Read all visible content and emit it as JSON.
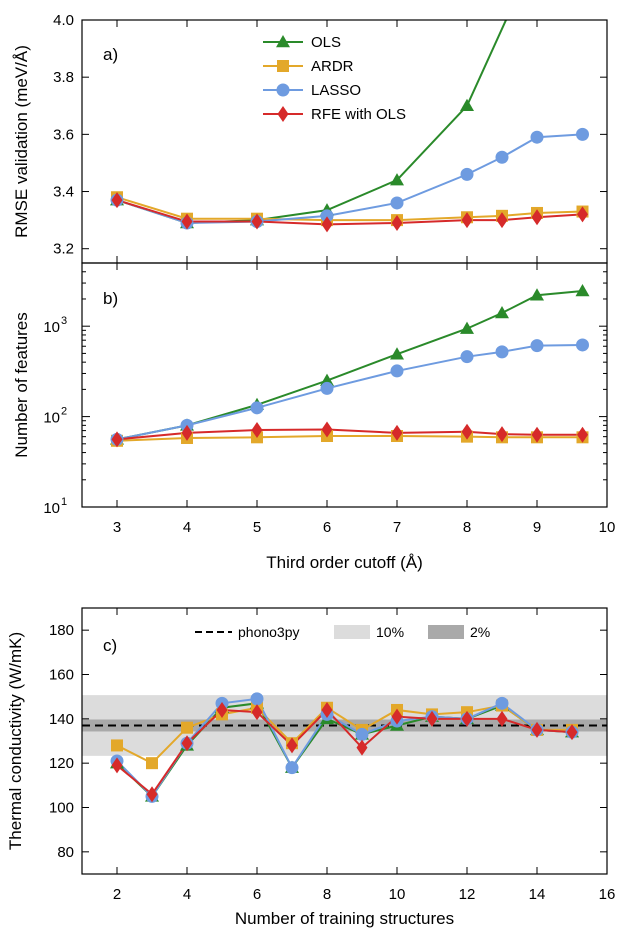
{
  "colors": {
    "OLS": "#2a8a2a",
    "ARDR": "#e3a82a",
    "LASSO": "#6e9be0",
    "RFE with OLS": "#d62a2a",
    "band10": "#dcdcdc",
    "band2": "#a9a9a9",
    "phono3py": "#000000"
  },
  "chart_data": [
    {
      "type": "line",
      "panel": "a)",
      "ylabel": "RMSE validation (meV/Å)",
      "ylim": [
        3.15,
        4.0
      ],
      "yticks": [
        3.2,
        3.4,
        3.6,
        3.8,
        4.0
      ],
      "ytick_labels": [
        "3.2",
        "3.4",
        "3.6",
        "3.8",
        "4.0"
      ],
      "xlim": [
        2.5,
        10
      ],
      "x": [
        3,
        4,
        5,
        6,
        7,
        8,
        8.5,
        9,
        9.65
      ],
      "legend": {
        "placement": "top-center",
        "entries": [
          "OLS",
          "ARDR",
          "LASSO",
          "RFE with OLS"
        ]
      },
      "series": [
        {
          "name": "OLS",
          "marker": "triangle",
          "x": [
            3,
            4,
            5,
            6,
            7,
            8,
            8.65
          ],
          "values": [
            3.37,
            3.29,
            3.3,
            3.335,
            3.44,
            3.7,
            4.05
          ]
        },
        {
          "name": "ARDR",
          "marker": "square",
          "values": [
            3.38,
            3.305,
            3.305,
            3.3,
            3.3,
            3.31,
            3.315,
            3.325,
            3.33
          ]
        },
        {
          "name": "LASSO",
          "marker": "circle",
          "values": [
            3.37,
            3.29,
            3.295,
            3.315,
            3.36,
            3.46,
            3.52,
            3.59,
            3.6
          ]
        },
        {
          "name": "RFE with OLS",
          "marker": "diamond",
          "values": [
            3.37,
            3.295,
            3.295,
            3.285,
            3.29,
            3.3,
            3.3,
            3.31,
            3.32
          ]
        }
      ]
    },
    {
      "type": "line",
      "panel": "b)",
      "yscale": "log",
      "ylabel": "Number of features",
      "xlabel": "Third order cutoff (Å)",
      "ylim": [
        10,
        5000
      ],
      "yticks": [
        10,
        100,
        1000
      ],
      "ytick_labels": [
        "10",
        "10",
        "10"
      ],
      "ytick_exponents": [
        "1",
        "2",
        "3"
      ],
      "xlim": [
        2.5,
        10
      ],
      "xticks": [
        3,
        4,
        5,
        6,
        7,
        8,
        9,
        10
      ],
      "xtick_labels": [
        "3",
        "4",
        "5",
        "6",
        "7",
        "8",
        "9",
        "10"
      ],
      "x": [
        3,
        4,
        5,
        6,
        7,
        8,
        8.5,
        9,
        9.65
      ],
      "series": [
        {
          "name": "OLS",
          "marker": "triangle",
          "values": [
            56,
            80,
            135,
            250,
            490,
            940,
            1400,
            2200,
            2450
          ]
        },
        {
          "name": "ARDR",
          "marker": "square",
          "values": [
            54,
            58,
            59,
            61,
            61,
            60,
            59,
            59,
            59
          ]
        },
        {
          "name": "LASSO",
          "marker": "circle",
          "values": [
            56,
            80,
            125,
            205,
            320,
            460,
            520,
            610,
            620
          ]
        },
        {
          "name": "RFE with OLS",
          "marker": "diamond",
          "values": [
            56,
            66,
            71,
            72,
            66,
            68,
            64,
            63,
            63
          ]
        }
      ]
    },
    {
      "type": "line",
      "panel": "c)",
      "ylabel": "Thermal conductivity (W/mK)",
      "xlabel": "Number of training structures",
      "ylim": [
        70,
        190
      ],
      "yticks": [
        80,
        100,
        120,
        140,
        160,
        180
      ],
      "ytick_labels": [
        "80",
        "100",
        "120",
        "140",
        "160",
        "180"
      ],
      "xlim": [
        1,
        16
      ],
      "xticks": [
        2,
        4,
        6,
        8,
        10,
        12,
        14,
        16
      ],
      "xtick_labels": [
        "2",
        "4",
        "6",
        "8",
        "10",
        "12",
        "14",
        "16"
      ],
      "x": [
        2,
        3,
        4,
        5,
        6,
        7,
        8,
        9,
        10,
        11,
        12,
        13,
        14,
        15
      ],
      "reference": {
        "name": "phono3py",
        "value": 137
      },
      "bands": [
        {
          "name": "10%",
          "low": 123.3,
          "high": 150.7
        },
        {
          "name": "2%",
          "low": 134.3,
          "high": 139.7
        }
      ],
      "legend": {
        "placement": "top-center",
        "entries": [
          "phono3py",
          "10%",
          "2%"
        ]
      },
      "series": [
        {
          "name": "OLS",
          "marker": "triangle",
          "values": [
            120,
            105,
            128,
            145,
            147,
            118,
            140,
            133,
            137,
            141,
            140,
            146,
            135,
            134
          ]
        },
        {
          "name": "ARDR",
          "marker": "square",
          "values": [
            128,
            120,
            136,
            142,
            145,
            129,
            145,
            135,
            144,
            142,
            143,
            146,
            135,
            135
          ]
        },
        {
          "name": "LASSO",
          "marker": "circle",
          "values": [
            121,
            105,
            129,
            147,
            149,
            118,
            142,
            133,
            139,
            141,
            140,
            147,
            135,
            134
          ]
        },
        {
          "name": "RFE with OLS",
          "marker": "diamond",
          "values": [
            119,
            106,
            129,
            144,
            143,
            128,
            144,
            127,
            141,
            140,
            140,
            140,
            135,
            134
          ]
        }
      ]
    }
  ]
}
